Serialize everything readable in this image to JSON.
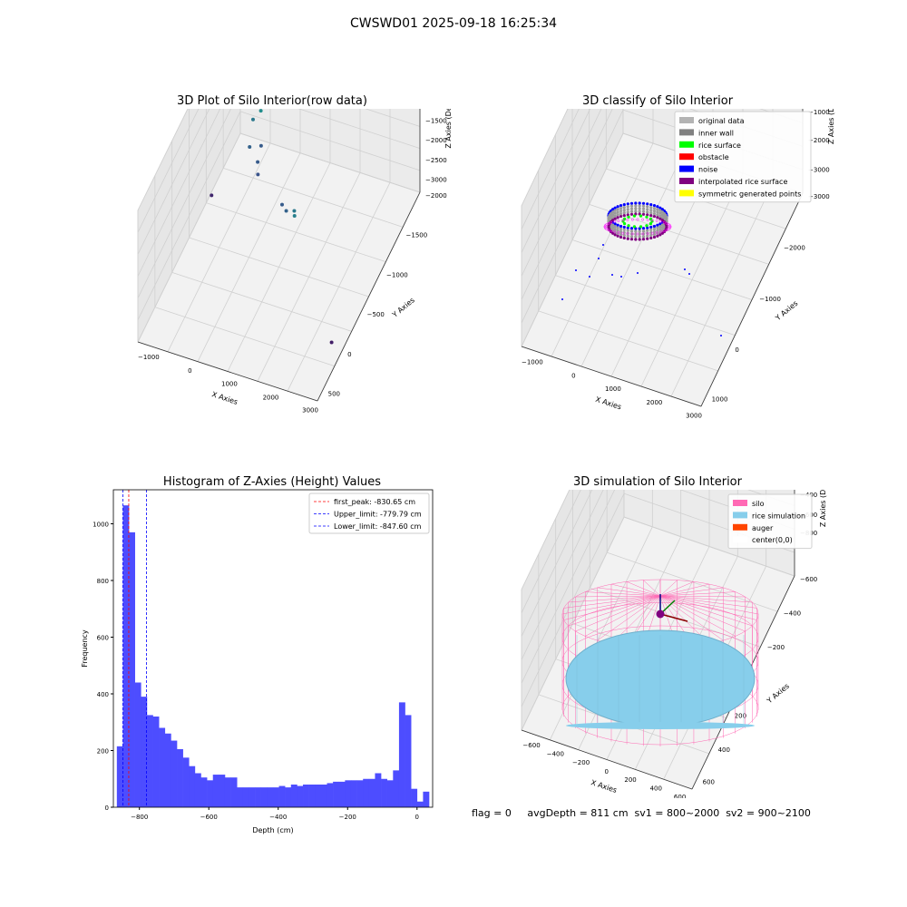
{
  "figure": {
    "suptitle": "CWSWD01 2025-09-18 16:25:34",
    "footer": "flag = 0     avgDepth = 811 cm  sv1 = 800~2000  sv2 = 900~2100"
  },
  "chart_data": [
    {
      "id": "raw",
      "type": "scatter",
      "title": "3D Plot of Silo Interior(row data)",
      "xlabel": "X Axies",
      "ylabel": "Y Axies",
      "zlabel": "Z Axies (Depth)",
      "x_ticks": [
        -1000,
        0,
        1000,
        2000,
        3000
      ],
      "y_ticks": [
        500,
        0,
        -500,
        -1000,
        -1500,
        -2000
      ],
      "z_ticks": [
        0,
        -500,
        -1000,
        -1500,
        -2000,
        -2500,
        -3000
      ],
      "x_tick_labels": [
        "−1000",
        "0",
        "1000",
        "2000",
        "3000"
      ],
      "y_tick_labels": [
        "500",
        "0",
        "−500",
        "−1000",
        "−1500",
        "−2000"
      ],
      "z_tick_labels": [
        "0",
        "−500",
        "−1000",
        "−1500",
        "−2000",
        "−2500",
        "−3000"
      ],
      "colormap": "viridis",
      "points": [
        [
          -1200,
          -300,
          -2900
        ],
        [
          3000,
          -1500,
          -3000
        ],
        [
          -500,
          300,
          -1600
        ],
        [
          -700,
          300,
          -1900
        ],
        [
          -400,
          200,
          -2300
        ],
        [
          -600,
          100,
          -2200
        ],
        [
          -300,
          0,
          -2300
        ],
        [
          -200,
          -100,
          -2400
        ],
        [
          700,
          -400,
          -2300
        ],
        [
          900,
          -500,
          -2200
        ],
        [
          1200,
          -600,
          -1900
        ],
        [
          1300,
          -700,
          -1800
        ],
        [
          0,
          400,
          -1300
        ],
        [
          -200,
          500,
          -1100
        ],
        [
          100,
          300,
          -1000
        ]
      ],
      "ring": {
        "cx": 300,
        "cy": -200,
        "radius": 850,
        "z_top": 0,
        "z_bottom": -700
      }
    },
    {
      "id": "classify",
      "type": "scatter",
      "title": "3D classify of Silo Interior",
      "xlabel": "X Axies",
      "ylabel": "Y Axies",
      "zlabel": "Z Axies (Depth)",
      "x_ticks": [
        -1000,
        0,
        1000,
        2000,
        3000
      ],
      "y_ticks": [
        1000,
        0,
        -1000,
        -2000,
        -3000
      ],
      "z_ticks": [
        1000,
        0,
        -1000,
        -2000,
        -3000
      ],
      "x_tick_labels": [
        "−1000",
        "0",
        "1000",
        "2000",
        "3000"
      ],
      "y_tick_labels": [
        "1000",
        "0",
        "−1000",
        "−2000",
        "−3000"
      ],
      "z_tick_labels": [
        "1000",
        "0",
        "−1000",
        "−2000",
        "−3000"
      ],
      "legend": [
        {
          "label": "original data",
          "color": "#b3b3b3"
        },
        {
          "label": "inner wall",
          "color": "#808080"
        },
        {
          "label": "rice surface",
          "color": "#00ff00"
        },
        {
          "label": "obstacle",
          "color": "#ff0000"
        },
        {
          "label": "noise",
          "color": "#0000ff"
        },
        {
          "label": "interpolated rice surface",
          "color": "#800080"
        },
        {
          "label": "symmetric generated points",
          "color": "#ffff00"
        }
      ]
    },
    {
      "id": "hist",
      "type": "bar",
      "title": "Histogram of Z-Axies (Height) Values",
      "xlabel": "Depth (cm)",
      "ylabel": "Frequency",
      "xlim": [
        -875,
        45
      ],
      "ylim": [
        0,
        1120
      ],
      "x_ticks": [
        -800,
        -600,
        -400,
        -200,
        0
      ],
      "x_tick_labels": [
        "−800",
        "−600",
        "−400",
        "−200",
        "0"
      ],
      "y_ticks": [
        0,
        200,
        400,
        600,
        800,
        1000
      ],
      "bar_color": "#4d4dff",
      "bin_start": -865,
      "bin_width": 17.3,
      "values": [
        215,
        1065,
        970,
        440,
        390,
        325,
        320,
        280,
        260,
        235,
        205,
        175,
        145,
        120,
        105,
        95,
        115,
        115,
        105,
        105,
        70,
        70,
        70,
        70,
        70,
        70,
        70,
        75,
        70,
        80,
        75,
        80,
        80,
        80,
        80,
        85,
        90,
        90,
        95,
        95,
        95,
        100,
        100,
        120,
        100,
        95,
        130,
        370,
        325,
        65,
        20,
        55
      ],
      "vlines": [
        {
          "label": "first_peak: -830.65 cm",
          "x": -830.65,
          "color": "#ff0000"
        },
        {
          "label": "Upper_limit: -779.79 cm",
          "x": -779.79,
          "color": "#0000ff"
        },
        {
          "label": "Lower_limit: -847.60 cm",
          "x": -847.6,
          "color": "#0000ff"
        }
      ]
    },
    {
      "id": "sim",
      "type": "scatter",
      "title": "3D simulation of Silo Interior",
      "xlabel": "X Axies",
      "ylabel": "Y Axies",
      "zlabel": "Z Axies (Depth)",
      "x_ticks": [
        -600,
        -400,
        -200,
        0,
        200,
        400,
        600
      ],
      "y_ticks": [
        600,
        400,
        200,
        0,
        -200,
        -400,
        -600
      ],
      "z_ticks": [
        200,
        0,
        -200,
        -400,
        -600,
        -800
      ],
      "x_tick_labels": [
        "−600",
        "−400",
        "−200",
        "0",
        "200",
        "400",
        "600"
      ],
      "y_tick_labels": [
        "600",
        "400",
        "200",
        "0",
        "−200",
        "−400",
        "−600"
      ],
      "z_tick_labels": [
        "200",
        "0",
        "−200",
        "−400",
        "−600",
        "−800"
      ],
      "legend": [
        {
          "label": "silo",
          "color": "#ff69b4"
        },
        {
          "label": "rice simulation",
          "color": "#87ceeb"
        },
        {
          "label": "auger",
          "color": "#ff4500"
        },
        {
          "label": "center(0,0)",
          "color": "#ffffff"
        }
      ],
      "silo": {
        "radius": 600,
        "z_top": 0,
        "z_bottom": -811
      },
      "rice_depth": -811
    }
  ]
}
